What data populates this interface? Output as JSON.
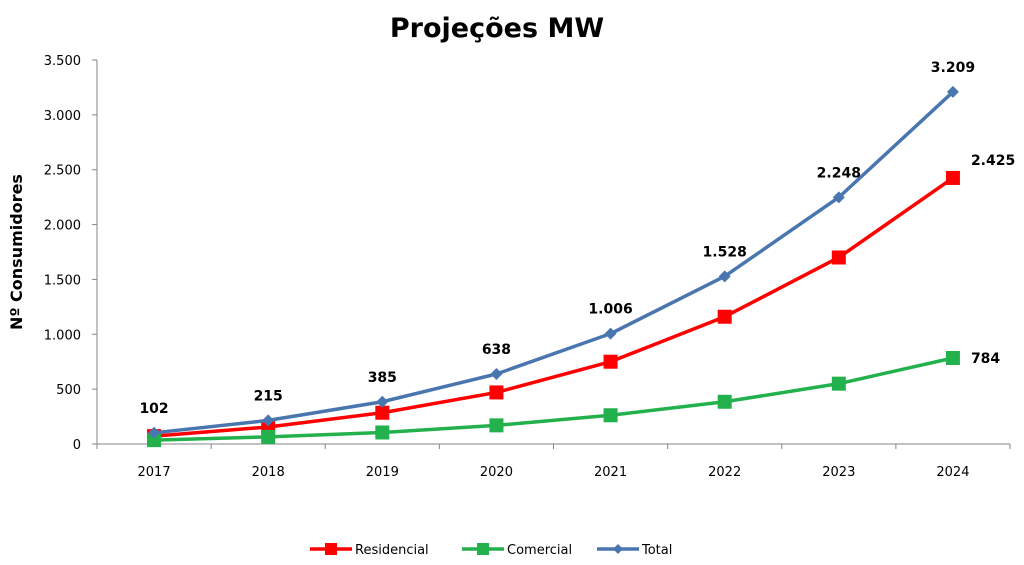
{
  "chart_data": {
    "type": "line",
    "title": "Projeções MW",
    "xlabel": "",
    "ylabel": "Nº Consumidores",
    "categories": [
      "2017",
      "2018",
      "2019",
      "2020",
      "2021",
      "2022",
      "2023",
      "2024"
    ],
    "ylim": [
      0,
      3500
    ],
    "yticks": [
      0,
      500,
      1000,
      1500,
      2000,
      2500,
      3000,
      3500
    ],
    "ytick_labels": [
      "0",
      "500",
      "1.000",
      "1.500",
      "2.000",
      "2.500",
      "3.000",
      "3.500"
    ],
    "grid": false,
    "legend_position": "bottom",
    "series": [
      {
        "name": "Residencial",
        "color": "#ff0000",
        "marker": "square",
        "values": [
          72,
          155,
          285,
          470,
          750,
          1160,
          1700,
          2425
        ],
        "labels": [
          "",
          "",
          "",
          "",
          "",
          "",
          "",
          "2.425"
        ]
      },
      {
        "name": "Comercial",
        "color": "#22b14c",
        "marker": "square",
        "values": [
          35,
          65,
          105,
          170,
          262,
          385,
          550,
          784
        ],
        "labels": [
          "",
          "",
          "",
          "",
          "",
          "",
          "",
          "784"
        ]
      },
      {
        "name": "Total",
        "color": "#4a76b0",
        "marker": "diamond",
        "values": [
          102,
          215,
          385,
          638,
          1006,
          1528,
          2248,
          3209
        ],
        "labels": [
          "102",
          "215",
          "385",
          "638",
          "1.006",
          "1.528",
          "2.248",
          "3.209"
        ]
      }
    ]
  }
}
